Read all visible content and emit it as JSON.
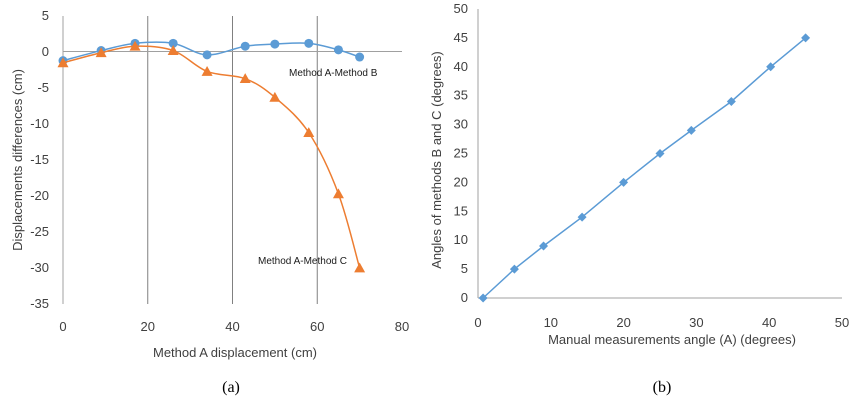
{
  "chart_data": [
    {
      "type": "line",
      "xlabel": "Method A displacement (cm)",
      "ylabel": "Displacements differences (cm)",
      "xlim": [
        0,
        80
      ],
      "ylim": [
        -35,
        5
      ],
      "xticks": [
        "0",
        "20",
        "40",
        "60",
        "80"
      ],
      "yticks": [
        "5",
        "0",
        "-5",
        "-10",
        "-15",
        "-20",
        "-25",
        "-30",
        "-35"
      ],
      "grid": "vertical",
      "series": [
        {
          "name": "Method A-Method  B",
          "marker": "circle",
          "color": "#5B9BD5",
          "x": [
            0,
            9,
            17,
            26,
            34,
            43,
            50,
            58,
            65,
            70
          ],
          "y": [
            -1.2,
            0.2,
            1.2,
            1.2,
            -0.4,
            0.8,
            1.1,
            1.2,
            0.3,
            -0.7
          ]
        },
        {
          "name": "Method A-Method  C",
          "marker": "triangle",
          "color": "#ED7D31",
          "x": [
            0,
            9,
            17,
            26,
            34,
            43,
            50,
            58,
            65,
            70
          ],
          "y": [
            -1.5,
            -0.1,
            0.8,
            0.2,
            -2.7,
            -3.7,
            -6.3,
            -11.2,
            -19.7,
            -30.0
          ]
        }
      ],
      "caption": "(a)"
    },
    {
      "type": "line",
      "xlabel": "Manual measurements  angle (A) (degrees)",
      "ylabel": "Angles of methods B and C (degrees)",
      "xlim": [
        0,
        50
      ],
      "ylim": [
        0,
        50
      ],
      "xticks": [
        "0",
        "10",
        "20",
        "30",
        "40",
        "50"
      ],
      "yticks": [
        "50",
        "45",
        "40",
        "35",
        "30",
        "25",
        "20",
        "15",
        "10",
        "5",
        "0"
      ],
      "grid": "none",
      "series": [
        {
          "marker": "diamond",
          "color": "#5B9BD5",
          "x": [
            0.7,
            5,
            9,
            14.3,
            20,
            25,
            29.3,
            34.8,
            40.2,
            45
          ],
          "y": [
            0,
            5,
            9,
            14,
            20,
            25,
            29,
            34,
            40,
            45
          ]
        }
      ],
      "caption": "(b)"
    }
  ]
}
